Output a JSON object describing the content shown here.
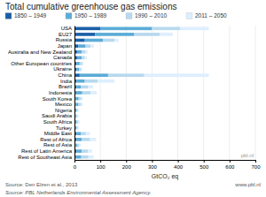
{
  "chart_data": {
    "type": "bar",
    "orientation": "horizontal",
    "stacked": true,
    "title": "Total cumulative greenhouse gas emissions",
    "x_label": "GtCO₂ eq",
    "annotations": [
      "Source: Den Elzen et al., 2013",
      "www.pbl.nl",
      "Source: PBL Netherlands Environmental Assessment Agency.",
      "pbl.nl"
    ],
    "categories": [
      "USA",
      "EU27",
      "Russia",
      "Japan",
      "Australia and New Zealand",
      "Canada",
      "Other European countries",
      "Ukraine",
      "China",
      "India",
      "Brazil",
      "Indonesia",
      "South Korea",
      "Mexico",
      "Nigeria",
      "Saudi Arabia",
      "South Africa",
      "Turkey",
      "Middle East",
      "Rest of Africa",
      "Rest of Asia",
      "Rest of Latin America",
      "Rest of Southeast Asia"
    ],
    "series": [
      {
        "name": "1850 – 1949",
        "color": "#1a5fa8",
        "values": [
          100,
          80,
          40,
          15,
          10,
          10,
          8,
          8,
          20,
          8,
          8,
          6,
          4,
          4,
          3,
          2,
          3,
          2,
          8,
          8,
          4,
          8,
          6
        ]
      },
      {
        "name": "1950 – 1989",
        "color": "#5bacd6",
        "values": [
          200,
          150,
          70,
          28,
          18,
          18,
          12,
          10,
          110,
          32,
          16,
          24,
          12,
          10,
          4,
          4,
          6,
          5,
          16,
          20,
          6,
          20,
          20
        ]
      },
      {
        "name": "1990 – 2010",
        "color": "#b8d9ee",
        "values": [
          110,
          100,
          45,
          20,
          15,
          12,
          10,
          8,
          140,
          50,
          28,
          32,
          10,
          10,
          6,
          6,
          6,
          6,
          20,
          32,
          8,
          24,
          28
        ]
      },
      {
        "name": "2011 – 2050",
        "color": "#ddeeff",
        "values": [
          110,
          50,
          15,
          12,
          8,
          8,
          5,
          4,
          250,
          65,
          20,
          24,
          6,
          8,
          5,
          4,
          5,
          4,
          16,
          24,
          6,
          16,
          20
        ]
      }
    ],
    "xlim": [
      0,
      700
    ],
    "xticks": [
      0,
      100,
      200,
      300,
      400,
      500,
      600,
      700
    ],
    "grid": true,
    "legend": "top"
  }
}
